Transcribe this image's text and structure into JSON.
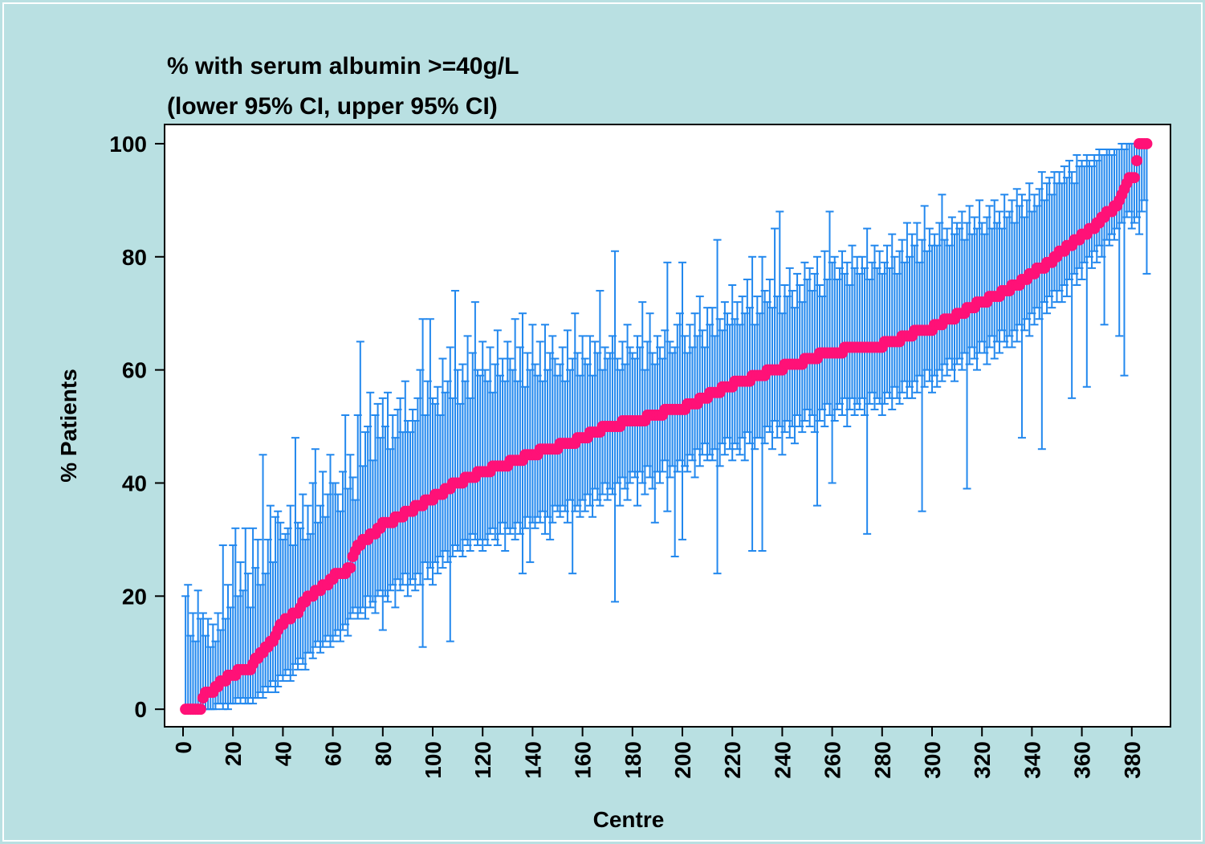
{
  "chart_data": {
    "type": "errorbar",
    "title": "% with serum albumin >=40g/L",
    "subtitle": "(lower 95% CI, upper 95% CI)",
    "x_label": "Centre",
    "y_label": "% Patients",
    "point_color": "#ff1177",
    "bar_color": "#2288ee",
    "xlim": [
      -7.4,
      395.5
    ],
    "ylim": [
      -3.1,
      103.4
    ],
    "xticks": [
      0,
      20,
      40,
      60,
      80,
      100,
      120,
      140,
      160,
      180,
      200,
      220,
      240,
      260,
      280,
      300,
      320,
      340,
      360,
      380
    ],
    "yticks": [
      0,
      20,
      40,
      60,
      80,
      100
    ],
    "x": [
      1,
      2,
      3,
      4,
      5,
      6,
      7,
      8,
      9,
      10,
      11,
      12,
      13,
      14,
      15,
      16,
      17,
      18,
      19,
      20,
      21,
      22,
      23,
      24,
      25,
      26,
      27,
      28,
      29,
      30,
      31,
      32,
      33,
      34,
      35,
      36,
      37,
      38,
      39,
      40,
      41,
      42,
      43,
      44,
      45,
      46,
      47,
      48,
      49,
      50,
      51,
      52,
      53,
      54,
      55,
      56,
      57,
      58,
      59,
      60,
      61,
      62,
      63,
      64,
      65,
      66,
      67,
      68,
      69,
      70,
      71,
      72,
      73,
      74,
      75,
      76,
      77,
      78,
      79,
      80,
      81,
      82,
      83,
      84,
      85,
      86,
      87,
      88,
      89,
      90,
      91,
      92,
      93,
      94,
      95,
      96,
      97,
      98,
      99,
      100,
      101,
      102,
      103,
      104,
      105,
      106,
      107,
      108,
      109,
      110,
      111,
      112,
      113,
      114,
      115,
      116,
      117,
      118,
      119,
      120,
      121,
      122,
      123,
      124,
      125,
      126,
      127,
      128,
      129,
      130,
      131,
      132,
      133,
      134,
      135,
      136,
      137,
      138,
      139,
      140,
      141,
      142,
      143,
      144,
      145,
      146,
      147,
      148,
      149,
      150,
      151,
      152,
      153,
      154,
      155,
      156,
      157,
      158,
      159,
      160,
      161,
      162,
      163,
      164,
      165,
      166,
      167,
      168,
      169,
      170,
      171,
      172,
      173,
      174,
      175,
      176,
      177,
      178,
      179,
      180,
      181,
      182,
      183,
      184,
      185,
      186,
      187,
      188,
      189,
      190,
      191,
      192,
      193,
      194,
      195,
      196,
      197,
      198,
      199,
      200,
      201,
      202,
      203,
      204,
      205,
      206,
      207,
      208,
      209,
      210,
      211,
      212,
      213,
      214,
      215,
      216,
      217,
      218,
      219,
      220,
      221,
      222,
      223,
      224,
      225,
      226,
      227,
      228,
      229,
      230,
      231,
      232,
      233,
      234,
      235,
      236,
      237,
      238,
      239,
      240,
      241,
      242,
      243,
      244,
      245,
      246,
      247,
      248,
      249,
      250,
      251,
      252,
      253,
      254,
      255,
      256,
      257,
      258,
      259,
      260,
      261,
      262,
      263,
      264,
      265,
      266,
      267,
      268,
      269,
      270,
      271,
      272,
      273,
      274,
      275,
      276,
      277,
      278,
      279,
      280,
      281,
      282,
      283,
      284,
      285,
      286,
      287,
      288,
      289,
      290,
      291,
      292,
      293,
      294,
      295,
      296,
      297,
      298,
      299,
      300,
      301,
      302,
      303,
      304,
      305,
      306,
      307,
      308,
      309,
      310,
      311,
      312,
      313,
      314,
      315,
      316,
      317,
      318,
      319,
      320,
      321,
      322,
      323,
      324,
      325,
      326,
      327,
      328,
      329,
      330,
      331,
      332,
      333,
      334,
      335,
      336,
      337,
      338,
      339,
      340,
      341,
      342,
      343,
      344,
      345,
      346,
      347,
      348,
      349,
      350,
      351,
      352,
      353,
      354,
      355,
      356,
      357,
      358,
      359,
      360,
      361,
      362,
      363,
      364,
      365,
      366,
      367,
      368,
      369,
      370,
      371,
      372,
      373,
      374,
      375,
      376,
      377,
      378,
      379,
      380,
      381,
      382,
      383,
      384,
      385,
      386
    ],
    "values": [
      0,
      0,
      0,
      0,
      0,
      0,
      0,
      2,
      3,
      3,
      3,
      3,
      4,
      4,
      5,
      5,
      5,
      6,
      6,
      6,
      6,
      7,
      7,
      7,
      7,
      7,
      7,
      8,
      9,
      9,
      10,
      10,
      11,
      11,
      12,
      12,
      13,
      14,
      15,
      15,
      16,
      16,
      16,
      17,
      17,
      17,
      18,
      19,
      19,
      20,
      20,
      20,
      21,
      21,
      21,
      22,
      22,
      22,
      23,
      23,
      24,
      24,
      24,
      24,
      24,
      25,
      25,
      27,
      28,
      29,
      29,
      30,
      30,
      30,
      31,
      31,
      31,
      32,
      32,
      33,
      33,
      33,
      33,
      33,
      34,
      34,
      34,
      34,
      35,
      35,
      35,
      35,
      36,
      36,
      36,
      36,
      37,
      37,
      37,
      37,
      38,
      38,
      38,
      38,
      39,
      39,
      39,
      40,
      40,
      40,
      40,
      40,
      41,
      41,
      41,
      41,
      41,
      42,
      42,
      42,
      42,
      42,
      42,
      43,
      43,
      43,
      43,
      43,
      43,
      43,
      44,
      44,
      44,
      44,
      44,
      44,
      45,
      45,
      45,
      45,
      45,
      45,
      46,
      46,
      46,
      46,
      46,
      46,
      46,
      46,
      47,
      47,
      47,
      47,
      47,
      47,
      47,
      48,
      48,
      48,
      48,
      48,
      49,
      49,
      49,
      49,
      49,
      50,
      50,
      50,
      50,
      50,
      50,
      50,
      50,
      51,
      51,
      51,
      51,
      51,
      51,
      51,
      51,
      51,
      51,
      52,
      52,
      52,
      52,
      52,
      52,
      52,
      53,
      53,
      53,
      53,
      53,
      53,
      53,
      53,
      53,
      54,
      54,
      54,
      54,
      54,
      55,
      55,
      55,
      55,
      56,
      56,
      56,
      56,
      56,
      57,
      57,
      57,
      57,
      57,
      58,
      58,
      58,
      58,
      58,
      58,
      58,
      59,
      59,
      59,
      59,
      59,
      59,
      60,
      60,
      60,
      60,
      60,
      60,
      60,
      61,
      61,
      61,
      61,
      61,
      61,
      61,
      61,
      62,
      62,
      62,
      62,
      62,
      62,
      63,
      63,
      63,
      63,
      63,
      63,
      63,
      63,
      63,
      63,
      64,
      64,
      64,
      64,
      64,
      64,
      64,
      64,
      64,
      64,
      64,
      64,
      64,
      64,
      64,
      64,
      65,
      65,
      65,
      65,
      65,
      65,
      65,
      66,
      66,
      66,
      66,
      66,
      67,
      67,
      67,
      67,
      67,
      67,
      67,
      67,
      68,
      68,
      68,
      68,
      69,
      69,
      69,
      69,
      69,
      70,
      70,
      70,
      70,
      71,
      71,
      71,
      71,
      72,
      72,
      72,
      72,
      72,
      73,
      73,
      73,
      73,
      73,
      74,
      74,
      74,
      74,
      75,
      75,
      75,
      75,
      76,
      76,
      76,
      77,
      77,
      77,
      78,
      78,
      78,
      78,
      79,
      79,
      79,
      80,
      80,
      81,
      81,
      81,
      82,
      82,
      82,
      83,
      83,
      83,
      84,
      84,
      84,
      85,
      85,
      85,
      86,
      86,
      87,
      87,
      88,
      88,
      88,
      89,
      89,
      90,
      91,
      92,
      93,
      94,
      94,
      94,
      97,
      100,
      100,
      100,
      100
    ],
    "lower": [
      0,
      0,
      0,
      0,
      0,
      0,
      0,
      0,
      0,
      0,
      0,
      0,
      0,
      1,
      1,
      0,
      1,
      0,
      1,
      1,
      1,
      2,
      1,
      2,
      1,
      1,
      2,
      1,
      2,
      2,
      3,
      2,
      4,
      3,
      4,
      5,
      3,
      4,
      6,
      5,
      6,
      7,
      5,
      6,
      8,
      7,
      9,
      8,
      7,
      10,
      10,
      9,
      11,
      12,
      10,
      11,
      12,
      13,
      11,
      12,
      13,
      14,
      12,
      14,
      15,
      13,
      16,
      17,
      18,
      16,
      17,
      18,
      16,
      20,
      18,
      19,
      17,
      20,
      21,
      14,
      20,
      19,
      21,
      22,
      18,
      23,
      21,
      22,
      24,
      20,
      22,
      23,
      21,
      24,
      22,
      11,
      26,
      23,
      25,
      22,
      26,
      24,
      27,
      25,
      28,
      26,
      12,
      27,
      29,
      28,
      28,
      27,
      30,
      29,
      28,
      31,
      30,
      29,
      30,
      28,
      30,
      29,
      31,
      32,
      30,
      29,
      31,
      33,
      28,
      32,
      31,
      32,
      30,
      33,
      31,
      24,
      32,
      34,
      26,
      33,
      32,
      34,
      33,
      35,
      31,
      34,
      30,
      33,
      36,
      35,
      34,
      36,
      35,
      33,
      37,
      24,
      35,
      36,
      34,
      37,
      35,
      38,
      36,
      34,
      39,
      37,
      36,
      38,
      40,
      37,
      39,
      38,
      19,
      40,
      36,
      41,
      39,
      37,
      40,
      42,
      41,
      36,
      42,
      40,
      38,
      43,
      41,
      39,
      33,
      42,
      40,
      42,
      44,
      35,
      41,
      43,
      27,
      42,
      44,
      30,
      43,
      42,
      45,
      44,
      41,
      46,
      43,
      45,
      47,
      44,
      45,
      44,
      46,
      24,
      43,
      47,
      45,
      48,
      46,
      44,
      47,
      46,
      45,
      48,
      44,
      49,
      47,
      28,
      46,
      48,
      48,
      28,
      47,
      50,
      49,
      46,
      51,
      48,
      50,
      45,
      49,
      51,
      48,
      50,
      47,
      52,
      50,
      49,
      51,
      53,
      50,
      52,
      49,
      36,
      51,
      53,
      50,
      54,
      52,
      40,
      51,
      53,
      54,
      52,
      55,
      50,
      53,
      55,
      52,
      54,
      53,
      55,
      52,
      31,
      54,
      56,
      53,
      55,
      54,
      52,
      54,
      56,
      55,
      53,
      57,
      55,
      54,
      56,
      58,
      55,
      57,
      55,
      58,
      56,
      59,
      35,
      57,
      60,
      58,
      56,
      59,
      57,
      60,
      58,
      61,
      59,
      62,
      60,
      58,
      61,
      62,
      60,
      63,
      39,
      61,
      64,
      62,
      60,
      63,
      65,
      63,
      61,
      64,
      66,
      62,
      65,
      63,
      67,
      65,
      64,
      66,
      64,
      67,
      65,
      68,
      48,
      67,
      69,
      66,
      70,
      68,
      71,
      69,
      46,
      72,
      70,
      73,
      71,
      74,
      72,
      74,
      72,
      75,
      73,
      76,
      55,
      77,
      75,
      78,
      76,
      79,
      57,
      80,
      78,
      81,
      79,
      82,
      80,
      68,
      83,
      82,
      84,
      83,
      85,
      66,
      86,
      59,
      87,
      88,
      85,
      86,
      87,
      84,
      88,
      90,
      77
    ],
    "upper": [
      20,
      22,
      13,
      17,
      12,
      21,
      16,
      17,
      13,
      16,
      11,
      15,
      12,
      17,
      14,
      29,
      16,
      22,
      18,
      29,
      32,
      20,
      26,
      21,
      32,
      24,
      18,
      32,
      25,
      30,
      22,
      45,
      24,
      30,
      36,
      26,
      34,
      35,
      33,
      30,
      31,
      32,
      36,
      29,
      48,
      33,
      32,
      38,
      30,
      36,
      31,
      40,
      46,
      33,
      36,
      42,
      34,
      38,
      45,
      40,
      40,
      38,
      35,
      42,
      52,
      39,
      45,
      41,
      37,
      52,
      65,
      43,
      49,
      50,
      56,
      44,
      52,
      54,
      48,
      55,
      50,
      56,
      46,
      52,
      48,
      53,
      55,
      49,
      58,
      51,
      49,
      53,
      51,
      55,
      60,
      69,
      52,
      58,
      69,
      55,
      54,
      57,
      52,
      62,
      56,
      58,
      64,
      55,
      74,
      60,
      54,
      61,
      58,
      66,
      55,
      63,
      72,
      60,
      59,
      65,
      60,
      58,
      64,
      56,
      61,
      67,
      59,
      62,
      58,
      65,
      62,
      60,
      69,
      58,
      64,
      70,
      57,
      63,
      60,
      68,
      61,
      59,
      65,
      58,
      68,
      60,
      63,
      66,
      62,
      59,
      61,
      64,
      58,
      67,
      60,
      62,
      70,
      63,
      59,
      66,
      62,
      61,
      66,
      59,
      65,
      63,
      74,
      60,
      64,
      62,
      63,
      66,
      81,
      62,
      60,
      65,
      61,
      68,
      64,
      63,
      62,
      66,
      64,
      72,
      60,
      65,
      70,
      63,
      61,
      66,
      64,
      62,
      67,
      79,
      65,
      63,
      64,
      68,
      70,
      79,
      66,
      63,
      68,
      64,
      70,
      66,
      73,
      67,
      64,
      71,
      68,
      71,
      66,
      83,
      69,
      67,
      72,
      70,
      68,
      75,
      69,
      72,
      68,
      73,
      70,
      76,
      71,
      80,
      68,
      73,
      70,
      80,
      74,
      72,
      76,
      71,
      85,
      73,
      88,
      70,
      75,
      73,
      78,
      74,
      71,
      77,
      75,
      72,
      79,
      76,
      78,
      74,
      77,
      80,
      75,
      73,
      81,
      76,
      88,
      79,
      80,
      76,
      78,
      81,
      77,
      79,
      75,
      82,
      78,
      80,
      77,
      80,
      78,
      85,
      76,
      79,
      82,
      78,
      81,
      77,
      79,
      82,
      78,
      84,
      80,
      77,
      81,
      83,
      79,
      86,
      80,
      84,
      82,
      86,
      79,
      83,
      89,
      81,
      85,
      82,
      84,
      82,
      86,
      91,
      83,
      85,
      82,
      87,
      84,
      86,
      85,
      88,
      83,
      86,
      89,
      84,
      87,
      85,
      90,
      86,
      84,
      87,
      89,
      85,
      90,
      86,
      88,
      85,
      91,
      87,
      88,
      90,
      86,
      92,
      89,
      91,
      87,
      90,
      93,
      88,
      91,
      89,
      92,
      95,
      90,
      93,
      94,
      91,
      95,
      93,
      95,
      93,
      96,
      94,
      97,
      95,
      93,
      98,
      96,
      97,
      96,
      98,
      97,
      96,
      98,
      97,
      99,
      98,
      98,
      99,
      99,
      98,
      99,
      99,
      99,
      100,
      99,
      100,
      100,
      100,
      100,
      100,
      100,
      100,
      100,
      100
    ]
  }
}
